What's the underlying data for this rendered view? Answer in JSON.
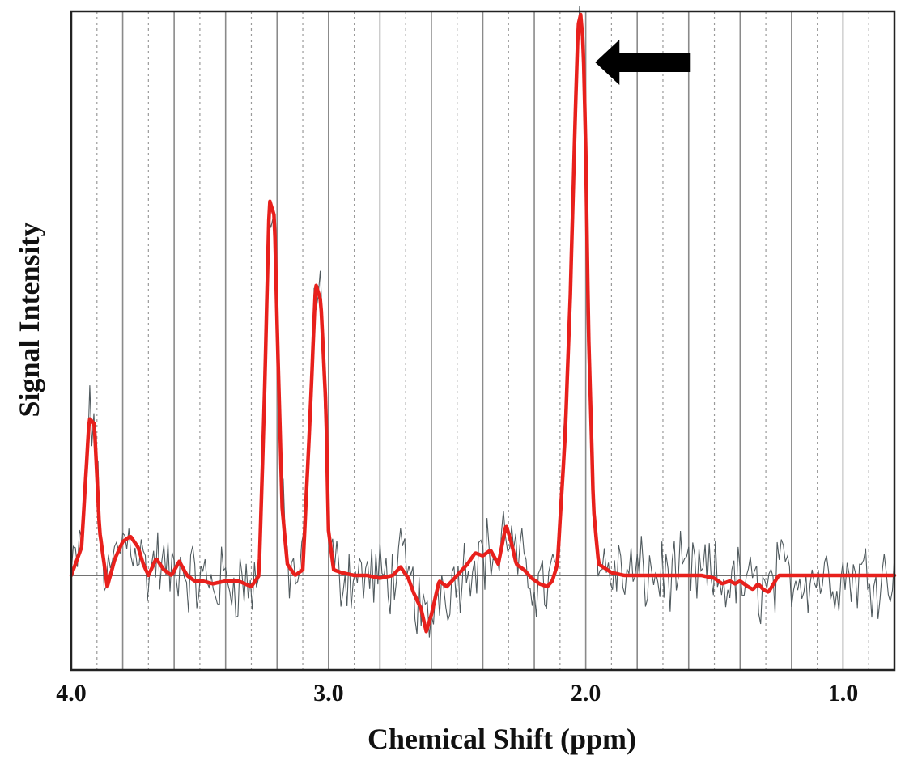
{
  "chart_data": {
    "type": "line",
    "title": "",
    "xlabel": "Chemical Shift (ppm)",
    "ylabel": "Signal Intensity",
    "xlim": [
      4.0,
      0.8
    ],
    "x_reversed": true,
    "ylim": [
      -0.17,
      1.0
    ],
    "x_ticks": [
      {
        "value": 4.0,
        "label": "4.0"
      },
      {
        "value": 3.0,
        "label": "3.0"
      },
      {
        "value": 2.0,
        "label": "2.0"
      },
      {
        "value": 1.0,
        "label": "1.0"
      }
    ],
    "grid": {
      "major_step": 0.2,
      "minor_step": 0.2,
      "major_offset": 0.0,
      "minor_offset": 0.1
    },
    "baseline": 0,
    "colors": {
      "fit": "#e8201c",
      "raw": "#505a5e",
      "grid": "#8a8a8a",
      "arrow": "#000000"
    },
    "annotations": [
      {
        "type": "arrow",
        "points_to_ppm": 2.02,
        "direction": "left"
      }
    ],
    "series": [
      {
        "role": "fitted",
        "x": [
          4.0,
          3.96,
          3.93,
          3.91,
          3.89,
          3.86,
          3.83,
          3.8,
          3.77,
          3.74,
          3.72,
          3.7,
          3.67,
          3.64,
          3.61,
          3.58,
          3.55,
          3.52,
          3.49,
          3.45,
          3.4,
          3.35,
          3.3,
          3.27,
          3.25,
          3.23,
          3.21,
          3.2,
          3.18,
          3.16,
          3.13,
          3.1,
          3.07,
          3.05,
          3.03,
          3.01,
          3.0,
          2.98,
          2.95,
          2.9,
          2.85,
          2.8,
          2.75,
          2.72,
          2.69,
          2.67,
          2.64,
          2.62,
          2.6,
          2.57,
          2.54,
          2.5,
          2.46,
          2.43,
          2.4,
          2.37,
          2.34,
          2.31,
          2.29,
          2.27,
          2.24,
          2.21,
          2.18,
          2.15,
          2.13,
          2.11,
          2.08,
          2.06,
          2.04,
          2.03,
          2.02,
          2.01,
          2.0,
          1.99,
          1.97,
          1.95,
          1.9,
          1.85,
          1.8,
          1.7,
          1.6,
          1.55,
          1.5,
          1.47,
          1.44,
          1.42,
          1.4,
          1.37,
          1.35,
          1.33,
          1.31,
          1.29,
          1.27,
          1.25,
          1.2,
          1.1,
          1.0,
          0.9,
          0.8
        ],
        "y": [
          0.0,
          0.05,
          0.28,
          0.27,
          0.08,
          -0.02,
          0.03,
          0.06,
          0.07,
          0.05,
          0.02,
          0.0,
          0.03,
          0.01,
          0.0,
          0.025,
          0.0,
          -0.01,
          -0.01,
          -0.015,
          -0.01,
          -0.01,
          -0.02,
          0.0,
          0.3,
          0.67,
          0.64,
          0.45,
          0.12,
          0.02,
          0.0,
          0.01,
          0.3,
          0.52,
          0.49,
          0.3,
          0.08,
          0.01,
          0.005,
          0.0,
          0.0,
          -0.005,
          0.0,
          0.015,
          -0.005,
          -0.03,
          -0.06,
          -0.1,
          -0.07,
          -0.01,
          -0.02,
          0.0,
          0.02,
          0.04,
          0.035,
          0.045,
          0.02,
          0.09,
          0.06,
          0.02,
          0.01,
          -0.005,
          -0.015,
          -0.02,
          -0.01,
          0.02,
          0.25,
          0.5,
          0.83,
          0.98,
          1.0,
          0.95,
          0.76,
          0.45,
          0.12,
          0.02,
          0.005,
          0.0,
          0.0,
          0.0,
          0.0,
          0.0,
          -0.005,
          -0.015,
          -0.01,
          -0.015,
          -0.01,
          -0.02,
          -0.025,
          -0.015,
          -0.025,
          -0.03,
          -0.015,
          0.0,
          0.0,
          0.0,
          0.0,
          0.0,
          0.0
        ]
      },
      {
        "role": "raw",
        "noise_amplitude": 0.055,
        "noise_step_ppm": 0.008,
        "follows": "fitted"
      }
    ]
  }
}
